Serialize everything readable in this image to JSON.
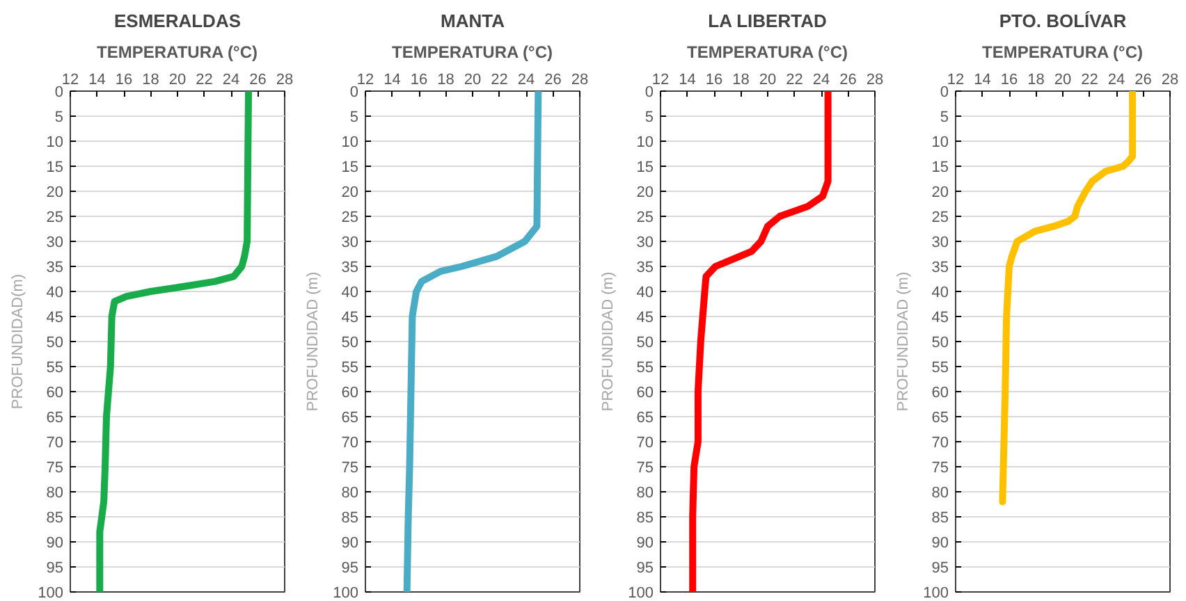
{
  "chart_data": [
    {
      "type": "line",
      "title": "ESMERALDAS",
      "xlabel": "TEMPERATURA (°C)",
      "ylabel": "PROFUNDIDAD(m)",
      "xlim": [
        12,
        28
      ],
      "xticks": [
        12,
        14,
        16,
        18,
        20,
        22,
        24,
        26,
        28
      ],
      "ylim": [
        100,
        0
      ],
      "yticks": [
        0,
        5,
        10,
        15,
        20,
        25,
        30,
        35,
        40,
        45,
        50,
        55,
        60,
        65,
        70,
        75,
        80,
        85,
        90,
        95,
        100
      ],
      "grid": "y",
      "marker": "none",
      "line_style": "solid",
      "series": [
        {
          "color": "#1aab4b",
          "x": [
            25.3,
            25.2,
            25.0,
            24.8,
            24.2,
            22.8,
            20.5,
            18.0,
            16.2,
            15.3,
            15.1,
            15.0,
            14.7,
            14.6,
            14.5,
            14.2,
            14.2
          ],
          "values": [
            0,
            30,
            33,
            35,
            37,
            38,
            39,
            40,
            41,
            42,
            45,
            55,
            65,
            75,
            82,
            88,
            100
          ]
        }
      ]
    },
    {
      "type": "line",
      "title": "MANTA",
      "xlabel": "TEMPERATURA (°C)",
      "ylabel": "PROFUNDIDAD (m)",
      "xlim": [
        12,
        28
      ],
      "xticks": [
        12,
        14,
        16,
        18,
        20,
        22,
        24,
        26,
        28
      ],
      "ylim": [
        100,
        0
      ],
      "yticks": [
        0,
        5,
        10,
        15,
        20,
        25,
        30,
        35,
        40,
        45,
        50,
        55,
        60,
        65,
        70,
        75,
        80,
        85,
        90,
        95,
        100
      ],
      "grid": "y",
      "marker": "none",
      "line_style": "solid",
      "series": [
        {
          "color": "#4bacc6",
          "x": [
            24.9,
            24.8,
            23.9,
            21.8,
            19.2,
            17.6,
            16.2,
            15.8,
            15.5,
            15.4,
            15.3,
            15.2,
            15.1
          ],
          "values": [
            0,
            27,
            30,
            33,
            35,
            36,
            38,
            40,
            45,
            60,
            75,
            85,
            100
          ]
        }
      ]
    },
    {
      "type": "line",
      "title": "LA LIBERTAD",
      "xlabel": "TEMPERATURA (°C)",
      "ylabel": "PROFUNDIDAD (m)",
      "xlim": [
        12,
        28
      ],
      "xticks": [
        12,
        14,
        16,
        18,
        20,
        22,
        24,
        26,
        28
      ],
      "ylim": [
        100,
        0
      ],
      "yticks": [
        0,
        5,
        10,
        15,
        20,
        25,
        30,
        35,
        40,
        45,
        50,
        55,
        60,
        65,
        70,
        75,
        80,
        85,
        90,
        95,
        100
      ],
      "grid": "y",
      "marker": "none",
      "line_style": "solid",
      "series": [
        {
          "color": "#ff0000",
          "x": [
            24.5,
            24.5,
            24.1,
            23.0,
            20.9,
            20.0,
            19.5,
            18.8,
            17.0,
            16.1,
            15.4,
            15.3,
            15.0,
            14.8,
            14.8,
            14.5,
            14.4,
            14.4
          ],
          "values": [
            0,
            18,
            21,
            23,
            25,
            27,
            30,
            32,
            34,
            35,
            37,
            40,
            50,
            60,
            70,
            75,
            85,
            100
          ]
        }
      ]
    },
    {
      "type": "line",
      "title": "PTO. BOLÍVAR",
      "xlabel": "TEMPERATURA (°C)",
      "ylabel": "PROFUNDIDAD (m)",
      "xlim": [
        12,
        28
      ],
      "xticks": [
        12,
        14,
        16,
        18,
        20,
        22,
        24,
        26,
        28
      ],
      "ylim": [
        100,
        0
      ],
      "yticks": [
        0,
        5,
        10,
        15,
        20,
        25,
        30,
        35,
        40,
        45,
        50,
        55,
        60,
        65,
        70,
        75,
        80,
        85,
        90,
        95,
        100
      ],
      "grid": "y",
      "marker": "none",
      "line_style": "solid",
      "series": [
        {
          "color": "#ffc000",
          "x": [
            25.2,
            25.2,
            24.9,
            24.5,
            23.2,
            22.2,
            21.7,
            21.1,
            20.9,
            20.4,
            19.3,
            17.9,
            16.6,
            16.2,
            16.0,
            15.8,
            15.7,
            15.5
          ],
          "values": [
            0,
            13,
            14,
            15,
            16,
            18,
            20,
            23,
            25,
            26,
            27,
            28,
            30,
            33,
            35,
            45,
            60,
            82
          ]
        }
      ]
    }
  ]
}
